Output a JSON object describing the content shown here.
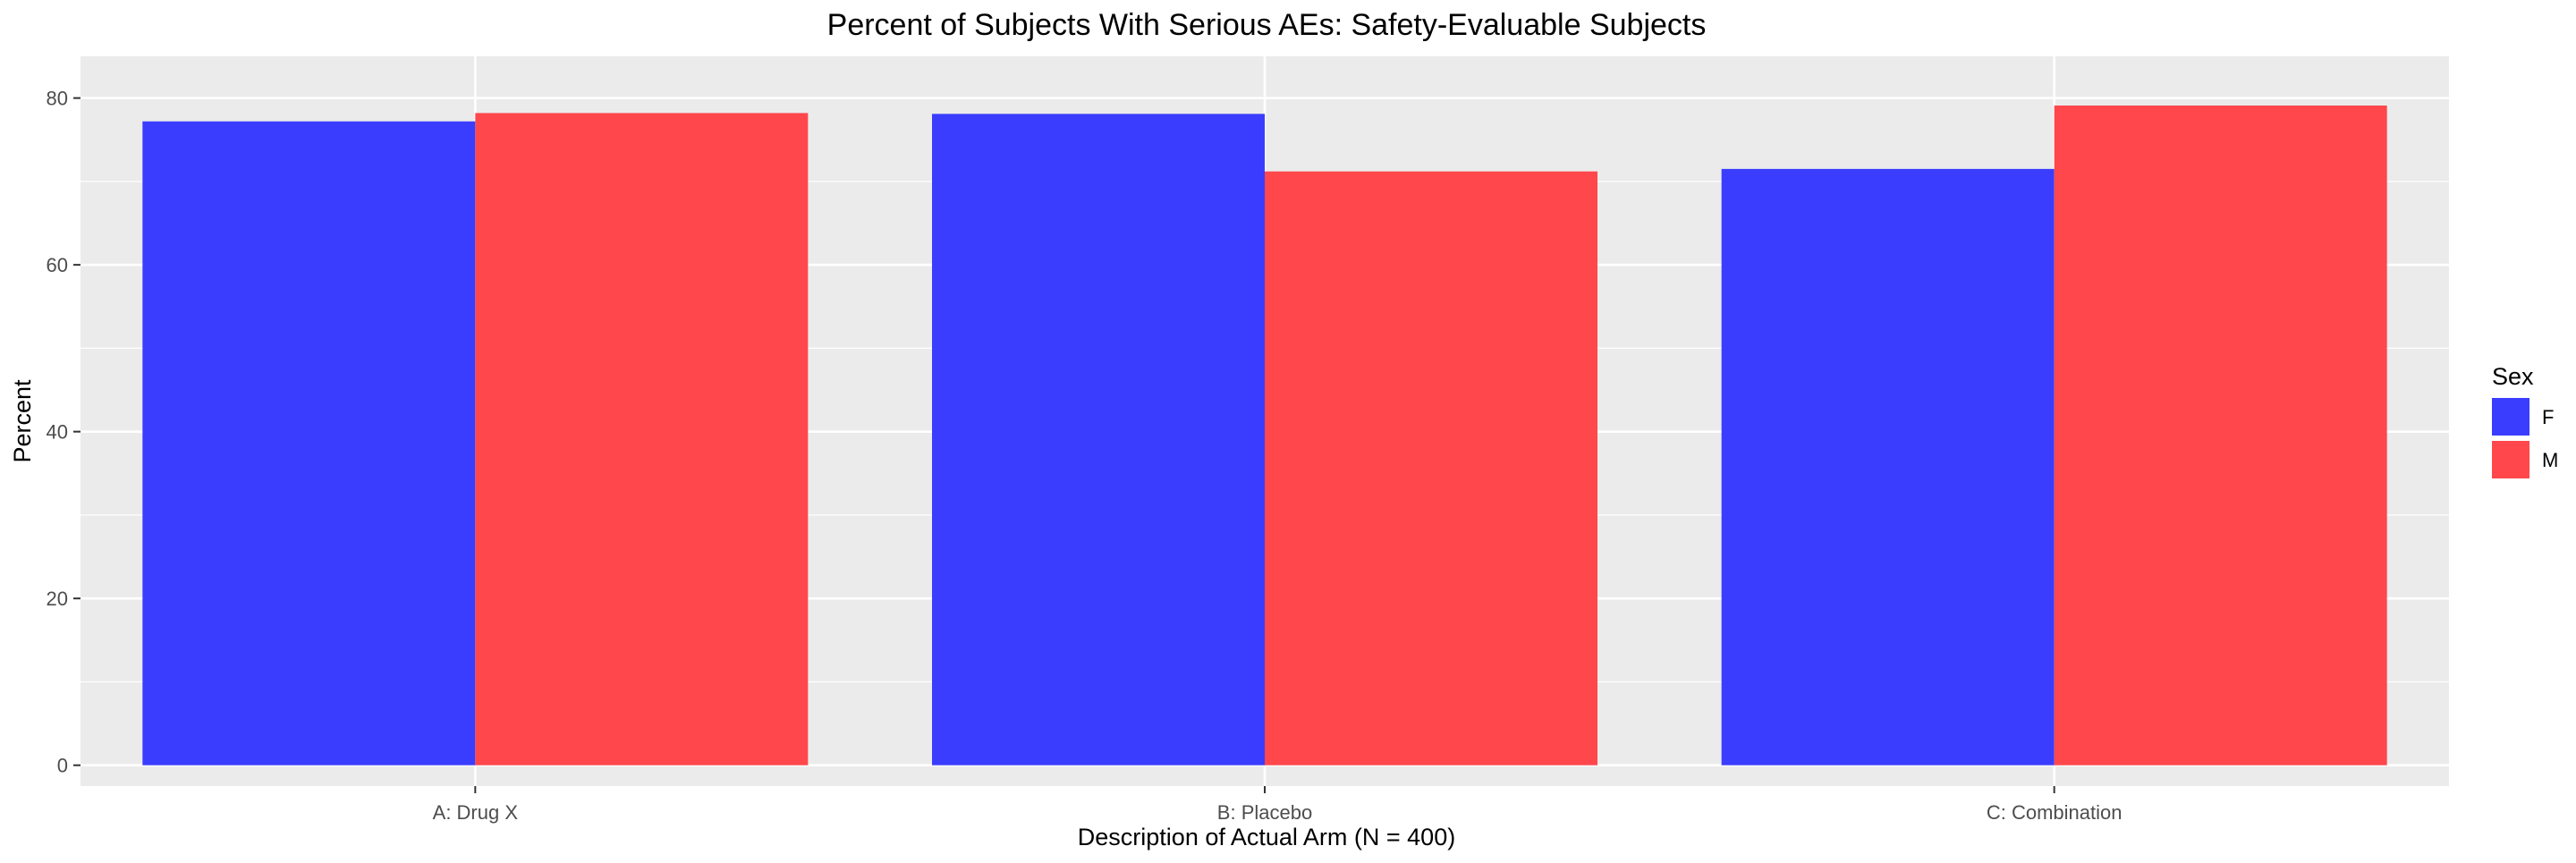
{
  "chart_data": {
    "type": "bar",
    "title": "Percent of Subjects With Serious AEs: Safety-Evaluable Subjects",
    "xlabel": "Description of Actual Arm (N = 400)",
    "ylabel": "Percent",
    "categories": [
      "A: Drug X",
      "B: Placebo",
      "C: Combination"
    ],
    "series": [
      {
        "name": "F",
        "color": "#3a3dfe",
        "values": [
          77.2,
          78.1,
          71.5
        ]
      },
      {
        "name": "M",
        "color": "#ff474c",
        "values": [
          78.2,
          71.2,
          79.1
        ]
      }
    ],
    "ylim": [
      -2.5,
      85
    ],
    "yticks": [
      0,
      20,
      40,
      60,
      80
    ],
    "grid": true,
    "panel_background": "#ebebeb",
    "legend": {
      "title": "Sex",
      "position": "right"
    }
  }
}
